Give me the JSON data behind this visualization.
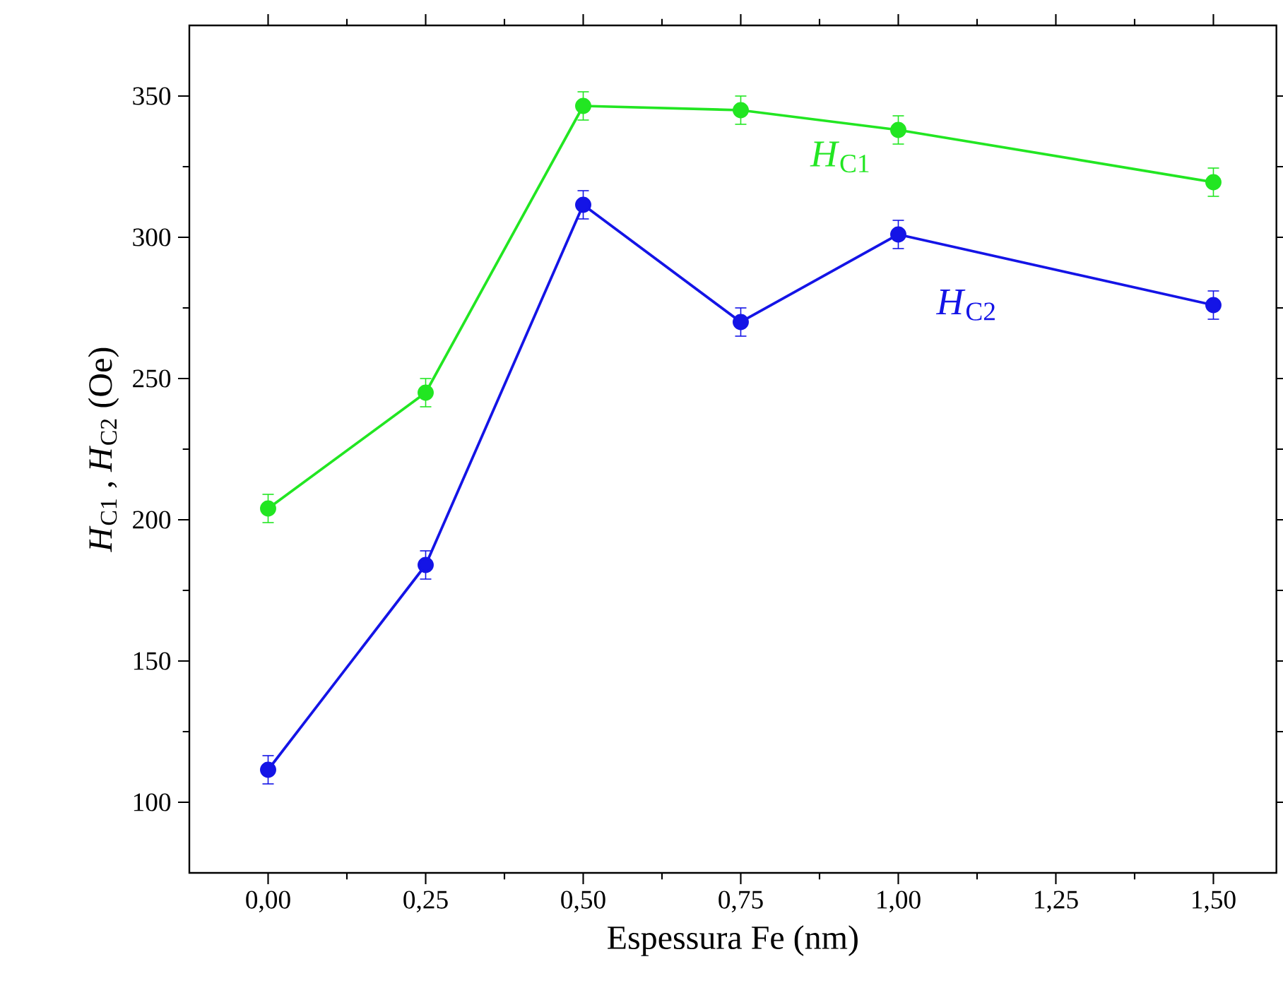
{
  "chart_data": {
    "type": "line",
    "xlabel": "Espessura Fe (nm)",
    "ylabel": "*H*$_{C1}$ , *H*$_{C2}$ (Oe)",
    "x": [
      0,
      0.25,
      0.5,
      0.75,
      1.0,
      1.5
    ],
    "series": [
      {
        "name": "*H*$_{C1}$",
        "color": "#22e622",
        "values": [
          204,
          245,
          346.5,
          345,
          338,
          319.5
        ],
        "errors": [
          5,
          5,
          5,
          5,
          5,
          5
        ]
      },
      {
        "name": "*H*$_{C2}$",
        "color": "#1414e6",
        "values": [
          111.5,
          184,
          311.5,
          270,
          301,
          276
        ],
        "errors": [
          5,
          5,
          5,
          5,
          5,
          5
        ]
      }
    ],
    "xlim": [
      -0.125,
      1.6
    ],
    "ylim": [
      75,
      375
    ],
    "xticks": [
      {
        "value": 0,
        "label": "0,00"
      },
      {
        "value": 0.25,
        "label": "0,25"
      },
      {
        "value": 0.5,
        "label": "0,50"
      },
      {
        "value": 0.75,
        "label": "0,75"
      },
      {
        "value": 1.0,
        "label": "1,00"
      },
      {
        "value": 1.25,
        "label": "1,25"
      },
      {
        "value": 1.5,
        "label": "1,50"
      }
    ],
    "yticks": [
      100,
      150,
      200,
      250,
      300,
      350
    ],
    "marker": "circle",
    "line_style": "solid",
    "grid": false,
    "legend": false
  }
}
